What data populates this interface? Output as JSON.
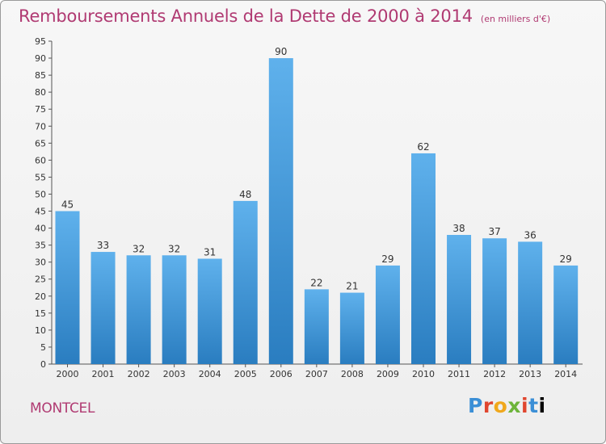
{
  "header": {
    "title": "Remboursements Annuels de la Dette de 2000 à 2014",
    "unit": "(en milliers d'€)"
  },
  "footer": {
    "commune": "MONTCEL",
    "logo_text": "Proxiti"
  },
  "chart_data": {
    "type": "bar",
    "title": "Remboursements Annuels de la Dette de 2000 à 2014",
    "subtitle": "(en milliers d'€)",
    "xlabel": "",
    "ylabel": "",
    "categories": [
      "2000",
      "2001",
      "2002",
      "2003",
      "2004",
      "2005",
      "2006",
      "2007",
      "2008",
      "2009",
      "2010",
      "2011",
      "2012",
      "2013",
      "2014"
    ],
    "values": [
      45,
      33,
      32,
      32,
      31,
      48,
      90,
      22,
      21,
      29,
      62,
      38,
      37,
      36,
      29
    ],
    "ylim": [
      0,
      95
    ],
    "yticks": [
      0,
      5,
      10,
      15,
      20,
      25,
      30,
      35,
      40,
      45,
      50,
      55,
      60,
      65,
      70,
      75,
      80,
      85,
      90,
      95
    ],
    "grid": false,
    "legend": "none",
    "colors": {
      "bar_top": "#5fb1ec",
      "bar_bottom": "#2a7dc0",
      "text": "#b03a72"
    }
  }
}
